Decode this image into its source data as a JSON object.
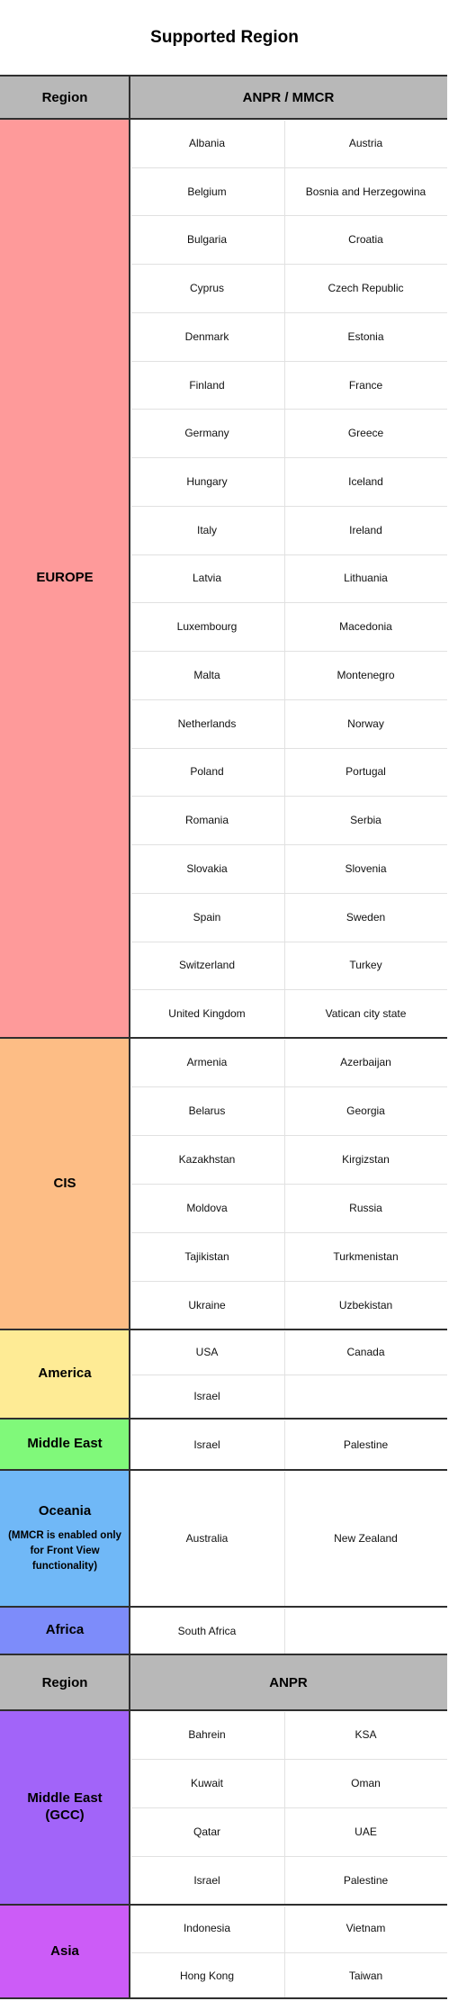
{
  "title": "Supported Region",
  "header1": {
    "region": "Region",
    "type": "ANPR / MMCR"
  },
  "header2": {
    "region": "Region",
    "type": "ANPR"
  },
  "colors": {
    "europe": "#fe9a9a",
    "cis": "#fdbd85",
    "america": "#feeb95",
    "middle_east": "#80f97a",
    "oceania": "#70b8f7",
    "africa": "#7d8cfa",
    "gcc": "#a264f9",
    "asia": "#cc5cf7",
    "header": "#b8b8b8"
  },
  "blocks": [
    {
      "id": "europe",
      "name": "EUROPE",
      "note": "",
      "rows": [
        [
          "Albania",
          "Austria"
        ],
        [
          "Belgium",
          "Bosnia and Herzegowina"
        ],
        [
          "Bulgaria",
          "Croatia"
        ],
        [
          "Cyprus",
          "Czech Republic"
        ],
        [
          "Denmark",
          "Estonia"
        ],
        [
          "Finland",
          "France"
        ],
        [
          "Germany",
          "Greece"
        ],
        [
          "Hungary",
          "Iceland"
        ],
        [
          "Italy",
          "Ireland"
        ],
        [
          "Latvia",
          "Lithuania"
        ],
        [
          "Luxembourg",
          "Macedonia"
        ],
        [
          "Malta",
          "Montenegro"
        ],
        [
          "Netherlands",
          "Norway"
        ],
        [
          "Poland",
          "Portugal"
        ],
        [
          "Romania",
          "Serbia"
        ],
        [
          "Slovakia",
          "Slovenia"
        ],
        [
          "Spain",
          "Sweden"
        ],
        [
          "Switzerland",
          "Turkey"
        ],
        [
          "United Kingdom",
          "Vatican city state"
        ]
      ]
    },
    {
      "id": "cis",
      "name": "CIS",
      "note": "",
      "rows": [
        [
          "Armenia",
          "Azerbaijan"
        ],
        [
          "Belarus",
          "Georgia"
        ],
        [
          "Kazakhstan",
          "Kirgizstan"
        ],
        [
          "Moldova",
          "Russia"
        ],
        [
          "Tajikistan",
          "Turkmenistan"
        ],
        [
          "Ukraine",
          "Uzbekistan"
        ]
      ]
    },
    {
      "id": "america",
      "name": "America",
      "note": "",
      "rows": [
        [
          "USA",
          "Canada"
        ],
        [
          "Israel",
          ""
        ]
      ]
    },
    {
      "id": "middle_east",
      "name": "Middle East",
      "note": "",
      "rows": [
        [
          "Israel",
          "Palestine"
        ]
      ]
    },
    {
      "id": "oceania",
      "name": "Oceania",
      "note": "(MMCR is enabled only for Front View functionality)",
      "rows": [
        [
          "Australia",
          "New Zealand"
        ]
      ]
    },
    {
      "id": "africa",
      "name": "Africa",
      "note": "",
      "rows": [
        [
          "South Africa",
          ""
        ]
      ]
    },
    {
      "id": "gcc",
      "name": "Middle East (GCC)",
      "note": "",
      "rows": [
        [
          "Bahrein",
          "KSA"
        ],
        [
          "Kuwait",
          "Oman"
        ],
        [
          "Qatar",
          "UAE"
        ],
        [
          "Israel",
          "Palestine"
        ]
      ]
    },
    {
      "id": "asia",
      "name": "Asia",
      "note": "",
      "rows": [
        [
          "Indonesia",
          "Vietnam"
        ],
        [
          "Hong Kong",
          "Taiwan"
        ]
      ]
    }
  ]
}
